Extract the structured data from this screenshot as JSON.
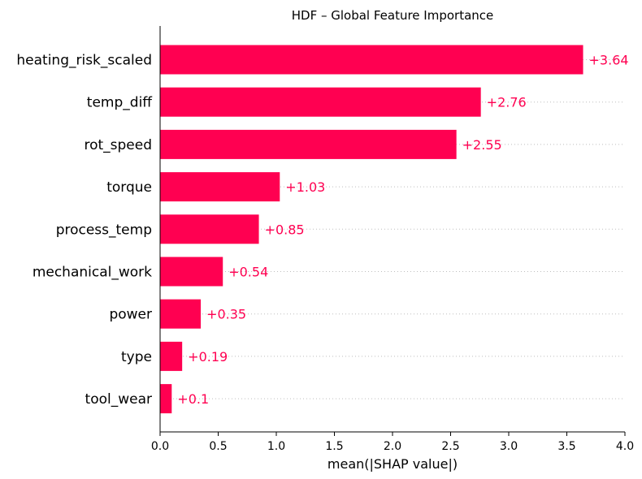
{
  "chart_data": {
    "type": "bar",
    "orientation": "horizontal",
    "title": "HDF – Global Feature Importance",
    "xlabel": "mean(|SHAP value|)",
    "ylabel": "",
    "xlim": [
      0,
      4.0
    ],
    "xticks": [
      "0.0",
      "0.5",
      "1.0",
      "1.5",
      "2.0",
      "2.5",
      "3.0",
      "3.5",
      "4.0"
    ],
    "grid": "dotted horizontal guides per row",
    "bar_color": "#ff0051",
    "value_label_color": "#ff0051",
    "categories": [
      "heating_risk_scaled",
      "temp_diff",
      "rot_speed",
      "torque",
      "process_temp",
      "mechanical_work",
      "power",
      "type",
      "tool_wear"
    ],
    "values": [
      3.64,
      2.76,
      2.55,
      1.03,
      0.85,
      0.54,
      0.35,
      0.19,
      0.1
    ],
    "value_labels": [
      "+3.64",
      "+2.76",
      "+2.55",
      "+1.03",
      "+0.85",
      "+0.54",
      "+0.35",
      "+0.19",
      "+0.1"
    ]
  }
}
